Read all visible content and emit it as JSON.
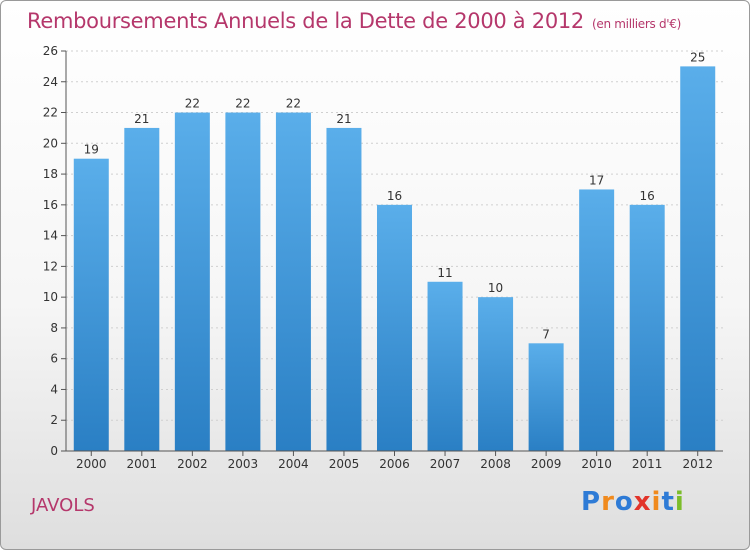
{
  "header": {
    "title": "Remboursements Annuels de la Dette de 2000 à 2012",
    "subtitle": "(en milliers d'€)"
  },
  "place": "JAVOLS",
  "brand": {
    "letters": [
      "P",
      "r",
      "o",
      "x",
      "i",
      "t",
      "i"
    ],
    "colors": [
      "#2e7bd6",
      "#f08a1d",
      "#2e7bd6",
      "#e2342a",
      "#f08a1d",
      "#2e7bd6",
      "#7cbd2a"
    ]
  },
  "colors": {
    "bar_top": "#5aaeea",
    "bar_bottom": "#2a7fc4",
    "grid": "#d0d0d0",
    "axis": "#555555",
    "text": "#333333"
  },
  "chart_data": {
    "type": "bar",
    "title": "Remboursements Annuels de la Dette de 2000 à 2012",
    "subtitle": "(en milliers d'€)",
    "categories": [
      "2000",
      "2001",
      "2002",
      "2003",
      "2004",
      "2005",
      "2006",
      "2007",
      "2008",
      "2009",
      "2010",
      "2011",
      "2012"
    ],
    "values": [
      19,
      21,
      22,
      22,
      22,
      21,
      16,
      11,
      10,
      7,
      17,
      16,
      25
    ],
    "ylim": [
      0,
      26
    ],
    "yticks": [
      0,
      2,
      4,
      6,
      8,
      10,
      12,
      14,
      16,
      18,
      20,
      22,
      24,
      26
    ],
    "grid": true,
    "data_labels": true
  }
}
